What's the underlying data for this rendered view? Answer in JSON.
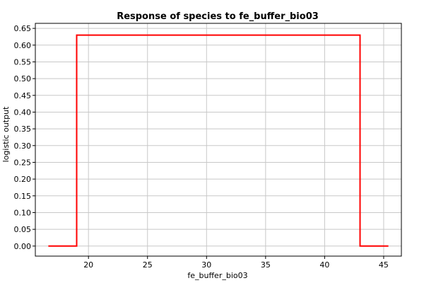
{
  "chart_data": {
    "type": "line",
    "title": "Response of species to fe_buffer_bio03",
    "xlabel": "fe_buffer_bio03",
    "ylabel": "logistic output",
    "xlim": [
      15.5,
      46.5
    ],
    "ylim": [
      -0.03,
      0.665
    ],
    "xticks": [
      20,
      25,
      30,
      35,
      40,
      45
    ],
    "xtick_labels": [
      "20",
      "25",
      "30",
      "35",
      "40",
      "45"
    ],
    "yticks": [
      0.0,
      0.05,
      0.1,
      0.15,
      0.2,
      0.25,
      0.3,
      0.35,
      0.4,
      0.45,
      0.5,
      0.55,
      0.6,
      0.65
    ],
    "ytick_labels": [
      "0.00",
      "0.05",
      "0.10",
      "0.15",
      "0.20",
      "0.25",
      "0.30",
      "0.35",
      "0.40",
      "0.45",
      "0.50",
      "0.55",
      "0.60",
      "0.65"
    ],
    "grid": true,
    "series": [
      {
        "color": "#ff0000",
        "x": [
          16.6,
          19.0,
          19.0,
          43.0,
          43.0,
          45.4
        ],
        "y": [
          0.0,
          0.0,
          0.63,
          0.63,
          0.0,
          0.0
        ]
      }
    ]
  }
}
